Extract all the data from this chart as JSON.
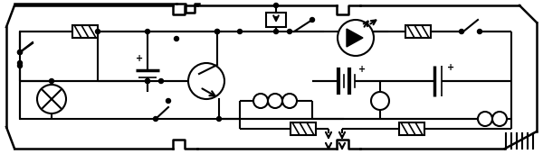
{
  "bg_color": "#ffffff",
  "line_color": "#000000",
  "lw": 1.5,
  "fig_width": 6.0,
  "fig_height": 1.71,
  "dpi": 100
}
